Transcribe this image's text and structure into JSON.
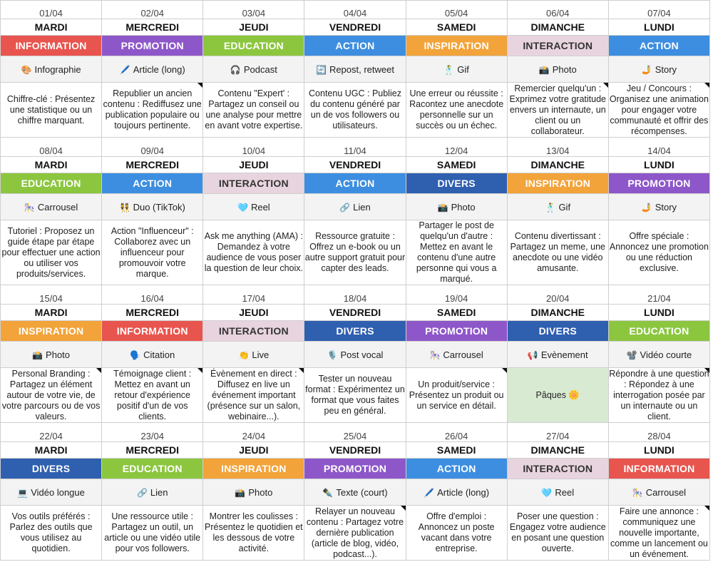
{
  "colors": {
    "INFORMATION": "#e8554e",
    "PROMOTION": "#8e57c9",
    "EDUCATION": "#8cc63f",
    "ACTION": "#3d8ee0",
    "INSPIRATION": "#f2a33a",
    "INTERACTION": "#e8d4de",
    "DIVERS": "#2f5faf"
  },
  "weeks": [
    {
      "days": [
        {
          "date": "01/04",
          "day": "MARDI",
          "category": "INFORMATION",
          "format_icon": "🎨",
          "format": "Infographie",
          "desc": "Chiffre-clé :  Présentez une statistique ou un chiffre marquant.",
          "note": false
        },
        {
          "date": "02/04",
          "day": "MERCREDI",
          "category": "PROMOTION",
          "format_icon": "🖊️",
          "format": "Article (long)",
          "desc": "Republier un ancien contenu : Rediffusez une publication populaire ou toujours pertinente.",
          "note": true
        },
        {
          "date": "03/04",
          "day": "JEUDI",
          "category": "EDUCATION",
          "format_icon": "🎧",
          "format": "Podcast",
          "desc": "Contenu \"Expert' : Partagez un conseil ou une analyse pour mettre en avant votre expertise.",
          "note": false
        },
        {
          "date": "04/04",
          "day": "VENDREDI",
          "category": "ACTION",
          "format_icon": "🔄",
          "format": "Repost, retweet",
          "desc": "Contenu UGC : Publiez du contenu généré par un de vos followers ou utilisateurs.",
          "note": false
        },
        {
          "date": "05/04",
          "day": "SAMEDI",
          "category": "INSPIRATION",
          "format_icon": "🕺",
          "format": "Gif",
          "desc": "Une erreur ou réussite : Racontez une anecdote personnelle sur un succès ou un échec.",
          "note": false
        },
        {
          "date": "06/04",
          "day": "DIMANCHE",
          "category": "INTERACTION",
          "format_icon": "📸",
          "format": "Photo",
          "desc": "Remercier quelqu'un : Exprimez votre gratitude envers un internaute, un client ou un collaborateur.",
          "note": true
        },
        {
          "date": "07/04",
          "day": "LUNDI",
          "category": "ACTION",
          "format_icon": "🤳",
          "format": "Story",
          "desc": "Jeu / Concours : Organisez une animation pour engager votre communauté et offrir des récompenses.",
          "note": true
        }
      ]
    },
    {
      "days": [
        {
          "date": "08/04",
          "day": "MARDI",
          "category": "EDUCATION",
          "format_icon": "🎠",
          "format": "Carrousel",
          "desc": "Tutoriel : Proposez un guide étape par étape pour effectuer une action ou utiliser vos produits/services.",
          "note": false
        },
        {
          "date": "09/04",
          "day": "MERCREDI",
          "category": "ACTION",
          "format_icon": "👯",
          "format": "Duo (TikTok)",
          "desc": "Action \"Influenceur\" : Collaborez avec un influenceur pour promouvoir votre marque.",
          "note": false
        },
        {
          "date": "10/04",
          "day": "JEUDI",
          "category": "INTERACTION",
          "format_icon": "🩵",
          "format": "Reel",
          "desc": "Ask me anything (AMA) : Demandez à votre audience de vous poser la question de leur choix.",
          "note": false
        },
        {
          "date": "11/04",
          "day": "VENDREDI",
          "category": "ACTION",
          "format_icon": "🔗",
          "format": "Lien",
          "desc": "Ressource gratuite : Offrez un e-book ou un autre support gratuit pour capter des leads.",
          "note": false
        },
        {
          "date": "12/04",
          "day": "SAMEDI",
          "category": "DIVERS",
          "format_icon": "📸",
          "format": "Photo",
          "desc": "Partager le post de quelqu'un d'autre : Mettez en avant le contenu d'une autre personne qui vous a marqué.",
          "note": false
        },
        {
          "date": "13/04",
          "day": "DIMANCHE",
          "category": "INSPIRATION",
          "format_icon": "🕺",
          "format": "Gif",
          "desc": "Contenu divertissant : Partagez un meme, une anecdote ou une vidéo amusante.",
          "note": false
        },
        {
          "date": "14/04",
          "day": "LUNDI",
          "category": "PROMOTION",
          "format_icon": "🤳",
          "format": "Story",
          "desc": "Offre spéciale : Annoncez une promotion ou une réduction exclusive.",
          "note": false
        }
      ]
    },
    {
      "days": [
        {
          "date": "15/04",
          "day": "MARDI",
          "category": "INSPIRATION",
          "format_icon": "📸",
          "format": "Photo",
          "desc": "Personal Branding : Partagez un élément autour de votre vie, de votre parcours ou de vos valeurs.",
          "note": true
        },
        {
          "date": "16/04",
          "day": "MERCREDI",
          "category": "INFORMATION",
          "format_icon": "🗣️",
          "format": "Citation",
          "desc": "Témoignage client : Mettez en avant un retour d'expérience positif d'un de vos clients.",
          "note": true
        },
        {
          "date": "17/04",
          "day": "JEUDI",
          "category": "INTERACTION",
          "format_icon": "👏",
          "format": "Live",
          "desc": "Évènement en direct : Diffusez en live un événement important (présence sur un salon, webinaire...).",
          "note": true
        },
        {
          "date": "18/04",
          "day": "VENDREDI",
          "category": "DIVERS",
          "format_icon": "🎙️",
          "format": "Post vocal",
          "desc": "Tester un nouveau format :  Expérimentez un format que vous faites peu en général.",
          "note": false
        },
        {
          "date": "19/04",
          "day": "SAMEDI",
          "category": "PROMOTION",
          "format_icon": "🎠",
          "format": "Carrousel",
          "desc": "Un produit/service : Présentez un produit ou un service en détail.",
          "note": true
        },
        {
          "date": "20/04",
          "day": "DIMANCHE",
          "category": "DIVERS",
          "format_icon": "📢",
          "format": "Evènement",
          "desc": "Pâques 🌼",
          "note": false,
          "highlight": true
        },
        {
          "date": "21/04",
          "day": "LUNDI",
          "category": "EDUCATION",
          "format_icon": "📽️",
          "format": "Vidéo courte",
          "desc": "Répondre à une question : Répondez à une interrogation posée par un internaute ou un client.",
          "note": true
        }
      ]
    },
    {
      "days": [
        {
          "date": "22/04",
          "day": "MARDI",
          "category": "DIVERS",
          "format_icon": "💻",
          "format": "Vidéo longue",
          "desc": "Vos outils préférés : Parlez des outils que vous utilisez au quotidien.",
          "note": false
        },
        {
          "date": "23/04",
          "day": "MERCREDI",
          "category": "EDUCATION",
          "format_icon": "🔗",
          "format": "Lien",
          "desc": "Une ressource utile : Partagez un outil, un article ou une vidéo utile pour vos followers.",
          "note": false
        },
        {
          "date": "24/04",
          "day": "JEUDI",
          "category": "INSPIRATION",
          "format_icon": "📸",
          "format": "Photo",
          "desc": "Montrer les coulisses : Présentez le quotidien et les dessous de votre activité.",
          "note": false
        },
        {
          "date": "25/04",
          "day": "VENDREDI",
          "category": "PROMOTION",
          "format_icon": "✒️",
          "format": "Texte (court)",
          "desc": "Relayer un nouveau contenu :  Partagez votre dernière publication (article de blog, vidéo, podcast...).",
          "note": true
        },
        {
          "date": "26/04",
          "day": "SAMEDI",
          "category": "ACTION",
          "format_icon": "🖊️",
          "format": "Article (long)",
          "desc": "Offre d'emploi : Annoncez un poste vacant dans votre entreprise.",
          "note": false
        },
        {
          "date": "27/04",
          "day": "DIMANCHE",
          "category": "INTERACTION",
          "format_icon": "🩵",
          "format": "Reel",
          "desc": "Poser une question : Engagez votre audience en posant une question ouverte.",
          "note": false
        },
        {
          "date": "28/04",
          "day": "LUNDI",
          "category": "INFORMATION",
          "format_icon": "🎠",
          "format": "Carrousel",
          "desc": "Faire une annonce : communiquez une nouvelle importante, comme un lancement ou un événement.",
          "note": true
        }
      ]
    }
  ]
}
